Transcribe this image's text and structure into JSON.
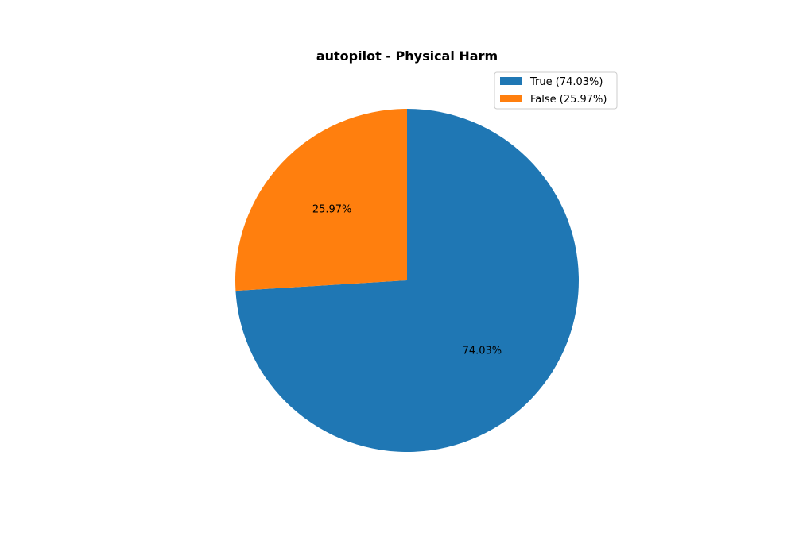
{
  "chart_data": {
    "type": "pie",
    "title": "autopilot - Physical Harm",
    "slices": [
      {
        "label": "True",
        "value": 74.03,
        "pct_label": "74.03%",
        "legend_label": "True (74.03%)",
        "color": "#1f77b4"
      },
      {
        "label": "False",
        "value": 25.97,
        "pct_label": "25.97%",
        "legend_label": "False (25.97%)",
        "color": "#ff7f0e"
      }
    ],
    "start_angle_deg": 90,
    "direction": "clockwise",
    "legend_position": "top-right"
  }
}
